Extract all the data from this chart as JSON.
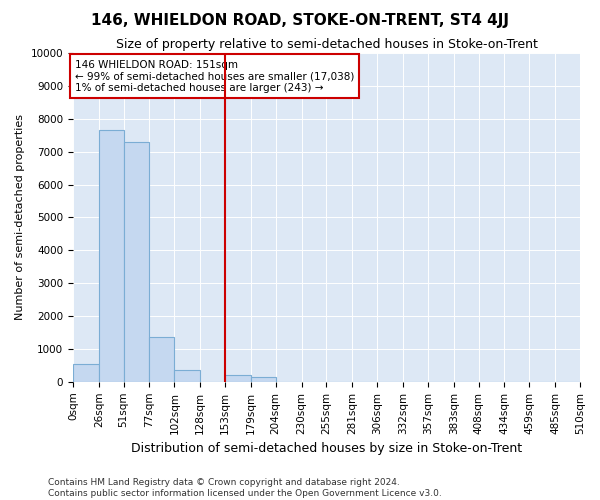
{
  "title": "146, WHIELDON ROAD, STOKE-ON-TRENT, ST4 4JJ",
  "subtitle": "Size of property relative to semi-detached houses in Stoke-on-Trent",
  "xlabel": "Distribution of semi-detached houses by size in Stoke-on-Trent",
  "ylabel": "Number of semi-detached properties",
  "annotation_title": "146 WHIELDON ROAD: 151sqm",
  "annotation_line1": "← 99% of semi-detached houses are smaller (17,038)",
  "annotation_line2": "1% of semi-detached houses are larger (243) →",
  "footer_line1": "Contains HM Land Registry data © Crown copyright and database right 2024.",
  "footer_line2": "Contains public sector information licensed under the Open Government Licence v3.0.",
  "bins": [
    0,
    26,
    51,
    77,
    102,
    128,
    153,
    179,
    204,
    230,
    255,
    281,
    306,
    332,
    357,
    383,
    408,
    434,
    459,
    485,
    510
  ],
  "counts": [
    550,
    7650,
    7300,
    1350,
    350,
    0,
    200,
    150,
    0,
    0,
    0,
    0,
    0,
    0,
    0,
    0,
    0,
    0,
    0,
    0
  ],
  "bar_color": "#c5d8f0",
  "bar_edge_color": "#7badd4",
  "vline_color": "#cc0000",
  "vline_x": 153,
  "annotation_box_edgecolor": "#cc0000",
  "background_color": "#dde8f5",
  "grid_color": "#ffffff",
  "ylim": [
    0,
    10000
  ],
  "yticks": [
    0,
    1000,
    2000,
    3000,
    4000,
    5000,
    6000,
    7000,
    8000,
    9000,
    10000
  ],
  "title_fontsize": 11,
  "subtitle_fontsize": 9,
  "ylabel_fontsize": 8,
  "xlabel_fontsize": 9,
  "tick_fontsize": 7.5,
  "footer_fontsize": 6.5
}
